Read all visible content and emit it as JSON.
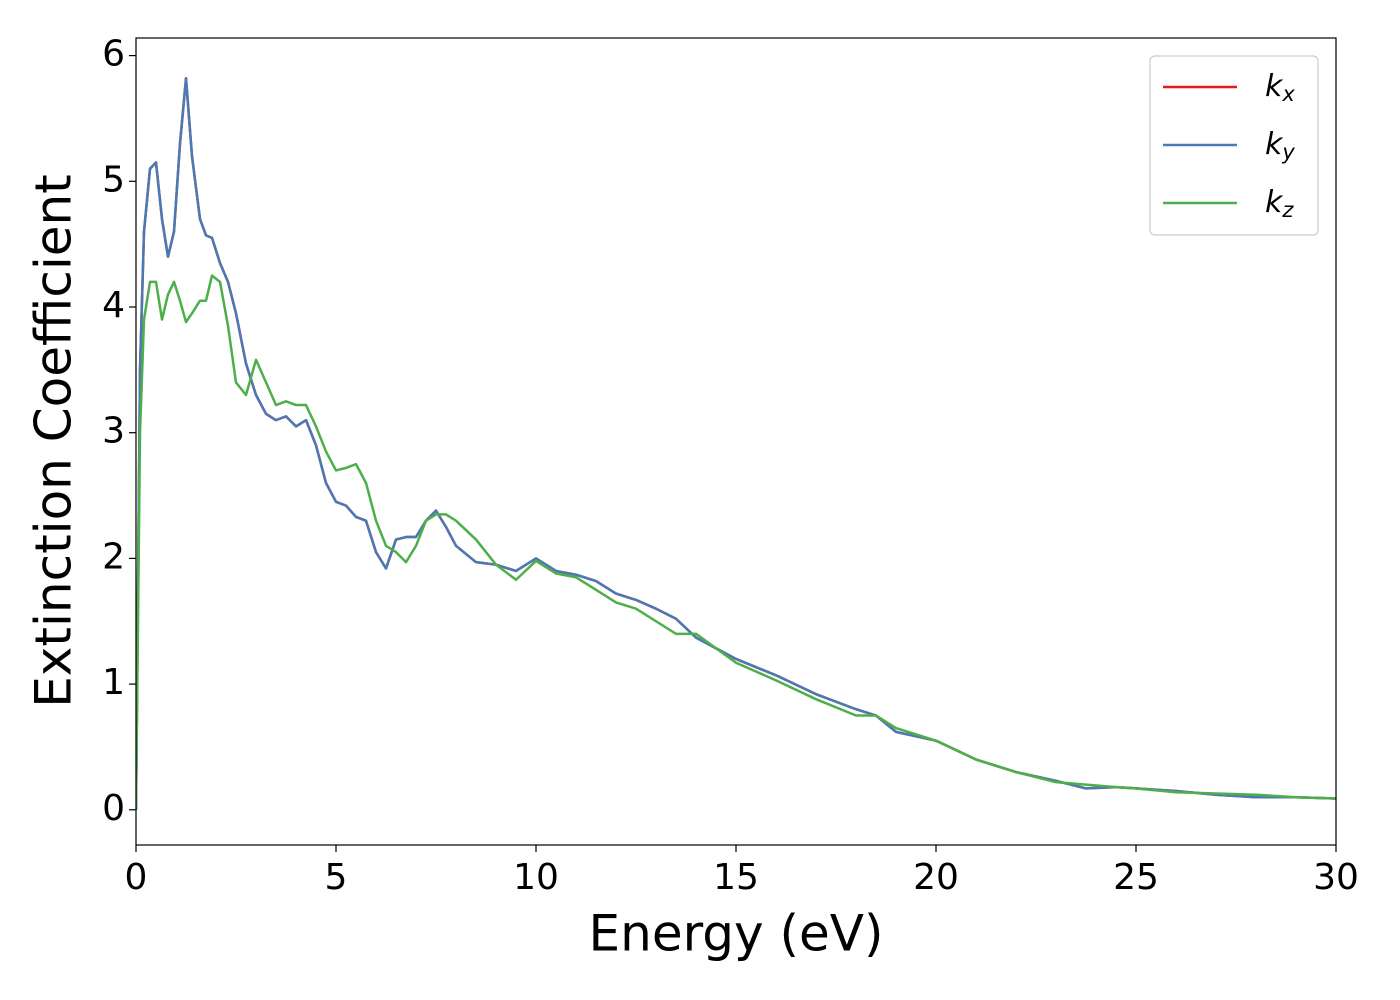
{
  "chart_data": {
    "type": "line",
    "xlabel": "Energy (eV)",
    "ylabel": "Extinction Coefficient",
    "x": [
      0,
      0.1,
      0.2,
      0.35,
      0.5,
      0.65,
      0.8,
      0.95,
      1.1,
      1.25,
      1.4,
      1.6,
      1.75,
      1.9,
      2.1,
      2.3,
      2.5,
      2.75,
      3.0,
      3.25,
      3.5,
      3.75,
      4.0,
      4.25,
      4.5,
      4.75,
      5.0,
      5.25,
      5.5,
      5.75,
      6.0,
      6.25,
      6.5,
      6.75,
      7.0,
      7.25,
      7.5,
      7.75,
      8.0,
      8.5,
      9.0,
      9.5,
      10,
      10.5,
      11,
      11.5,
      12,
      12.5,
      13,
      13.5,
      14,
      15,
      16,
      17,
      18,
      18.5,
      19,
      20,
      21,
      22,
      23,
      23.75,
      24.5,
      25,
      26,
      27,
      28,
      29,
      30
    ],
    "series": [
      {
        "name": "kx",
        "color": "#e41a1c",
        "values": [
          0,
          3.5,
          4.6,
          5.1,
          5.15,
          4.7,
          4.4,
          4.6,
          5.3,
          5.82,
          5.2,
          4.7,
          4.57,
          4.55,
          4.35,
          4.2,
          3.95,
          3.55,
          3.3,
          3.15,
          3.1,
          3.13,
          3.05,
          3.1,
          2.9,
          2.6,
          2.45,
          2.42,
          2.33,
          2.3,
          2.05,
          1.92,
          2.15,
          2.17,
          2.17,
          2.3,
          2.38,
          2.25,
          2.1,
          1.97,
          1.95,
          1.9,
          2.0,
          1.9,
          1.87,
          1.82,
          1.72,
          1.67,
          1.6,
          1.52,
          1.37,
          1.2,
          1.07,
          0.92,
          0.8,
          0.75,
          0.62,
          0.55,
          0.4,
          0.3,
          0.23,
          0.17,
          0.18,
          0.17,
          0.15,
          0.12,
          0.1,
          0.1,
          0.09
        ]
      },
      {
        "name": "ky",
        "color": "#4a7ab5",
        "values": [
          0,
          3.5,
          4.6,
          5.1,
          5.15,
          4.7,
          4.4,
          4.6,
          5.3,
          5.82,
          5.2,
          4.7,
          4.57,
          4.55,
          4.35,
          4.2,
          3.95,
          3.55,
          3.3,
          3.15,
          3.1,
          3.13,
          3.05,
          3.1,
          2.9,
          2.6,
          2.45,
          2.42,
          2.33,
          2.3,
          2.05,
          1.92,
          2.15,
          2.17,
          2.17,
          2.3,
          2.38,
          2.25,
          2.1,
          1.97,
          1.95,
          1.9,
          2.0,
          1.9,
          1.87,
          1.82,
          1.72,
          1.67,
          1.6,
          1.52,
          1.37,
          1.2,
          1.07,
          0.92,
          0.8,
          0.75,
          0.62,
          0.55,
          0.4,
          0.3,
          0.23,
          0.17,
          0.18,
          0.17,
          0.15,
          0.12,
          0.1,
          0.1,
          0.09
        ]
      },
      {
        "name": "kz",
        "color": "#4daf4a",
        "values": [
          0,
          3.0,
          3.9,
          4.2,
          4.2,
          3.9,
          4.1,
          4.2,
          4.05,
          3.88,
          3.95,
          4.05,
          4.05,
          4.25,
          4.2,
          3.85,
          3.4,
          3.3,
          3.58,
          3.4,
          3.22,
          3.25,
          3.22,
          3.22,
          3.05,
          2.85,
          2.7,
          2.72,
          2.75,
          2.6,
          2.3,
          2.1,
          2.05,
          1.97,
          2.1,
          2.3,
          2.35,
          2.35,
          2.3,
          2.15,
          1.95,
          1.83,
          1.98,
          1.88,
          1.85,
          1.75,
          1.65,
          1.6,
          1.5,
          1.4,
          1.4,
          1.17,
          1.03,
          0.88,
          0.75,
          0.75,
          0.65,
          0.55,
          0.4,
          0.3,
          0.22,
          0.2,
          0.18,
          0.17,
          0.14,
          0.13,
          0.12,
          0.1,
          0.09
        ]
      }
    ],
    "xlim": [
      0,
      30
    ],
    "xticks": [
      0,
      5,
      10,
      15,
      20,
      25,
      30
    ],
    "ylim": [
      -0.28,
      6.14
    ],
    "yticks": [
      0,
      1,
      2,
      3,
      4,
      5,
      6
    ],
    "grid": false,
    "legend": "upper right"
  }
}
